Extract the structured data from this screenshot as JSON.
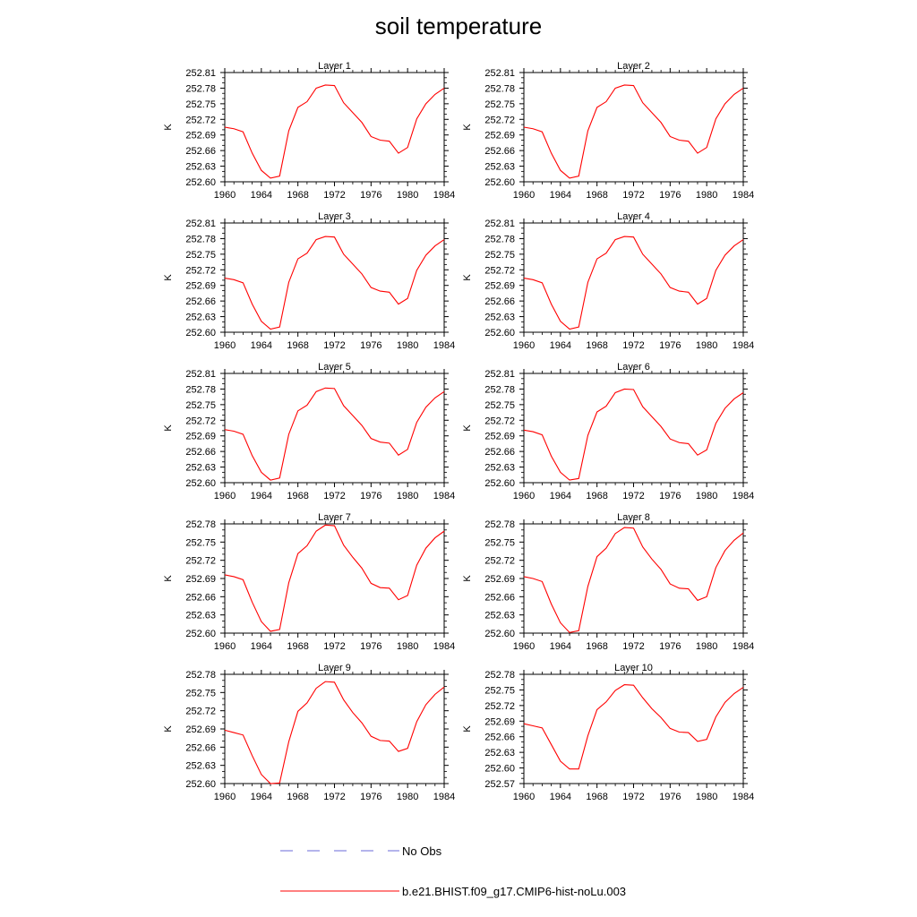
{
  "figure": {
    "title": "soil temperature",
    "legend": [
      {
        "label": "No Obs",
        "style": "dashed",
        "color": "#6a6ad8"
      },
      {
        "label": "b.e21.BHIST.f09_g17.CMIP6-hist-noLu.003",
        "style": "solid",
        "color": "#ff0000"
      }
    ]
  },
  "chart_data": [
    {
      "type": "line",
      "title": "Layer 1",
      "ylabel": "K",
      "xlim": [
        1960,
        1984
      ],
      "ylim": [
        252.6,
        252.81
      ],
      "xticks": [
        "1960",
        "1964",
        "1968",
        "1972",
        "1976",
        "1980",
        "1984"
      ],
      "yticks": [
        "252.60",
        "252.63",
        "252.66",
        "252.69",
        "252.72",
        "252.75",
        "252.78",
        "252.81"
      ],
      "x": [
        1960,
        1961,
        1962,
        1963,
        1964,
        1965,
        1966,
        1967,
        1968,
        1969,
        1970,
        1971,
        1972,
        1973,
        1974,
        1975,
        1976,
        1977,
        1978,
        1979,
        1980,
        1981,
        1982,
        1983,
        1984
      ],
      "series": [
        {
          "name": "b.e21.BHIST.f09_g17.CMIP6-hist-noLu.003",
          "color": "#ff0000",
          "values": [
            252.705,
            252.702,
            252.696,
            252.655,
            252.622,
            252.607,
            252.611,
            252.698,
            252.743,
            252.754,
            252.78,
            252.786,
            252.785,
            252.752,
            252.733,
            252.714,
            252.687,
            252.68,
            252.678,
            252.655,
            252.666,
            252.721,
            252.75,
            252.768,
            252.78
          ]
        }
      ]
    },
    {
      "type": "line",
      "title": "Layer 2",
      "ylabel": "K",
      "xlim": [
        1960,
        1984
      ],
      "ylim": [
        252.6,
        252.81
      ],
      "xticks": [
        "1960",
        "1964",
        "1968",
        "1972",
        "1976",
        "1980",
        "1984"
      ],
      "yticks": [
        "252.60",
        "252.63",
        "252.66",
        "252.69",
        "252.72",
        "252.75",
        "252.78",
        "252.81"
      ],
      "x": [
        1960,
        1961,
        1962,
        1963,
        1964,
        1965,
        1966,
        1967,
        1968,
        1969,
        1970,
        1971,
        1972,
        1973,
        1974,
        1975,
        1976,
        1977,
        1978,
        1979,
        1980,
        1981,
        1982,
        1983,
        1984
      ],
      "series": [
        {
          "name": "b.e21.BHIST.f09_g17.CMIP6-hist-noLu.003",
          "color": "#ff0000",
          "values": [
            252.705,
            252.702,
            252.696,
            252.655,
            252.622,
            252.607,
            252.611,
            252.698,
            252.743,
            252.754,
            252.78,
            252.786,
            252.785,
            252.752,
            252.733,
            252.714,
            252.687,
            252.68,
            252.678,
            252.655,
            252.666,
            252.721,
            252.75,
            252.768,
            252.78
          ]
        }
      ]
    },
    {
      "type": "line",
      "title": "Layer 3",
      "ylabel": "K",
      "xlim": [
        1960,
        1984
      ],
      "ylim": [
        252.6,
        252.81
      ],
      "xticks": [
        "1960",
        "1964",
        "1968",
        "1972",
        "1976",
        "1980",
        "1984"
      ],
      "yticks": [
        "252.60",
        "252.63",
        "252.66",
        "252.69",
        "252.72",
        "252.75",
        "252.78",
        "252.81"
      ],
      "x": [
        1960,
        1961,
        1962,
        1963,
        1964,
        1965,
        1966,
        1967,
        1968,
        1969,
        1970,
        1971,
        1972,
        1973,
        1974,
        1975,
        1976,
        1977,
        1978,
        1979,
        1980,
        1981,
        1982,
        1983,
        1984
      ],
      "series": [
        {
          "name": "b.e21.BHIST.f09_g17.CMIP6-hist-noLu.003",
          "color": "#ff0000",
          "values": [
            252.704,
            252.701,
            252.695,
            252.654,
            252.621,
            252.606,
            252.61,
            252.696,
            252.741,
            252.752,
            252.778,
            252.784,
            252.783,
            252.75,
            252.731,
            252.712,
            252.686,
            252.679,
            252.677,
            252.654,
            252.665,
            252.719,
            252.748,
            252.766,
            252.778
          ]
        }
      ]
    },
    {
      "type": "line",
      "title": "Layer 4",
      "ylabel": "K",
      "xlim": [
        1960,
        1984
      ],
      "ylim": [
        252.6,
        252.81
      ],
      "xticks": [
        "1960",
        "1964",
        "1968",
        "1972",
        "1976",
        "1980",
        "1984"
      ],
      "yticks": [
        "252.60",
        "252.63",
        "252.66",
        "252.69",
        "252.72",
        "252.75",
        "252.78",
        "252.81"
      ],
      "x": [
        1960,
        1961,
        1962,
        1963,
        1964,
        1965,
        1966,
        1967,
        1968,
        1969,
        1970,
        1971,
        1972,
        1973,
        1974,
        1975,
        1976,
        1977,
        1978,
        1979,
        1980,
        1981,
        1982,
        1983,
        1984
      ],
      "series": [
        {
          "name": "b.e21.BHIST.f09_g17.CMIP6-hist-noLu.003",
          "color": "#ff0000",
          "values": [
            252.704,
            252.701,
            252.695,
            252.654,
            252.621,
            252.606,
            252.61,
            252.696,
            252.741,
            252.752,
            252.778,
            252.784,
            252.783,
            252.75,
            252.731,
            252.712,
            252.686,
            252.679,
            252.677,
            252.654,
            252.665,
            252.719,
            252.748,
            252.766,
            252.778
          ]
        }
      ]
    },
    {
      "type": "line",
      "title": "Layer 5",
      "ylabel": "K",
      "xlim": [
        1960,
        1984
      ],
      "ylim": [
        252.6,
        252.81
      ],
      "xticks": [
        "1960",
        "1964",
        "1968",
        "1972",
        "1976",
        "1980",
        "1984"
      ],
      "yticks": [
        "252.60",
        "252.63",
        "252.66",
        "252.69",
        "252.72",
        "252.75",
        "252.78",
        "252.81"
      ],
      "x": [
        1960,
        1961,
        1962,
        1963,
        1964,
        1965,
        1966,
        1967,
        1968,
        1969,
        1970,
        1971,
        1972,
        1973,
        1974,
        1975,
        1976,
        1977,
        1978,
        1979,
        1980,
        1981,
        1982,
        1983,
        1984
      ],
      "series": [
        {
          "name": "b.e21.BHIST.f09_g17.CMIP6-hist-noLu.003",
          "color": "#ff0000",
          "values": [
            252.702,
            252.699,
            252.693,
            252.652,
            252.62,
            252.605,
            252.609,
            252.693,
            252.738,
            252.749,
            252.775,
            252.782,
            252.781,
            252.748,
            252.729,
            252.71,
            252.685,
            252.678,
            252.676,
            252.653,
            252.664,
            252.716,
            252.745,
            252.763,
            252.775
          ]
        }
      ]
    },
    {
      "type": "line",
      "title": "Layer 6",
      "ylabel": "K",
      "xlim": [
        1960,
        1984
      ],
      "ylim": [
        252.6,
        252.81
      ],
      "xticks": [
        "1960",
        "1964",
        "1968",
        "1972",
        "1976",
        "1980",
        "1984"
      ],
      "yticks": [
        "252.60",
        "252.63",
        "252.66",
        "252.69",
        "252.72",
        "252.75",
        "252.78",
        "252.81"
      ],
      "x": [
        1960,
        1961,
        1962,
        1963,
        1964,
        1965,
        1966,
        1967,
        1968,
        1969,
        1970,
        1971,
        1972,
        1973,
        1974,
        1975,
        1976,
        1977,
        1978,
        1979,
        1980,
        1981,
        1982,
        1983,
        1984
      ],
      "series": [
        {
          "name": "b.e21.BHIST.f09_g17.CMIP6-hist-noLu.003",
          "color": "#ff0000",
          "values": [
            252.701,
            252.698,
            252.692,
            252.651,
            252.62,
            252.605,
            252.608,
            252.691,
            252.736,
            252.747,
            252.773,
            252.78,
            252.779,
            252.746,
            252.727,
            252.708,
            252.684,
            252.677,
            252.675,
            252.653,
            252.663,
            252.714,
            252.743,
            252.761,
            252.773
          ]
        }
      ]
    },
    {
      "type": "line",
      "title": "Layer 7",
      "ylabel": "K",
      "xlim": [
        1960,
        1984
      ],
      "ylim": [
        252.6,
        252.78
      ],
      "xticks": [
        "1960",
        "1964",
        "1968",
        "1972",
        "1976",
        "1980",
        "1984"
      ],
      "yticks": [
        "252.60",
        "252.63",
        "252.66",
        "252.69",
        "252.72",
        "252.75",
        "252.78"
      ],
      "x": [
        1960,
        1961,
        1962,
        1963,
        1964,
        1965,
        1966,
        1967,
        1968,
        1969,
        1970,
        1971,
        1972,
        1973,
        1974,
        1975,
        1976,
        1977,
        1978,
        1979,
        1980,
        1981,
        1982,
        1983,
        1984
      ],
      "series": [
        {
          "name": "b.e21.BHIST.f09_g17.CMIP6-hist-noLu.003",
          "color": "#ff0000",
          "values": [
            252.696,
            252.693,
            252.688,
            252.651,
            252.619,
            252.603,
            252.606,
            252.683,
            252.731,
            252.744,
            252.768,
            252.778,
            252.777,
            252.745,
            252.725,
            252.707,
            252.682,
            252.675,
            252.674,
            252.655,
            252.662,
            252.712,
            252.74,
            252.757,
            252.768
          ]
        }
      ]
    },
    {
      "type": "line",
      "title": "Layer 8",
      "ylabel": "K",
      "xlim": [
        1960,
        1984
      ],
      "ylim": [
        252.6,
        252.78
      ],
      "xticks": [
        "1960",
        "1964",
        "1968",
        "1972",
        "1976",
        "1980",
        "1984"
      ],
      "yticks": [
        "252.60",
        "252.63",
        "252.66",
        "252.69",
        "252.72",
        "252.75",
        "252.78"
      ],
      "x": [
        1960,
        1961,
        1962,
        1963,
        1964,
        1965,
        1966,
        1967,
        1968,
        1969,
        1970,
        1971,
        1972,
        1973,
        1974,
        1975,
        1976,
        1977,
        1978,
        1979,
        1980,
        1981,
        1982,
        1983,
        1984
      ],
      "series": [
        {
          "name": "b.e21.BHIST.f09_g17.CMIP6-hist-noLu.003",
          "color": "#ff0000",
          "values": [
            252.693,
            252.69,
            252.685,
            252.648,
            252.617,
            252.601,
            252.604,
            252.677,
            252.726,
            252.74,
            252.764,
            252.774,
            252.773,
            252.742,
            252.722,
            252.705,
            252.681,
            252.674,
            252.673,
            252.654,
            252.66,
            252.708,
            252.736,
            252.753,
            252.765
          ]
        }
      ]
    },
    {
      "type": "line",
      "title": "Layer 9",
      "ylabel": "K",
      "xlim": [
        1960,
        1984
      ],
      "ylim": [
        252.6,
        252.78
      ],
      "xticks": [
        "1960",
        "1964",
        "1968",
        "1972",
        "1976",
        "1980",
        "1984"
      ],
      "yticks": [
        "252.60",
        "252.63",
        "252.66",
        "252.69",
        "252.72",
        "252.75",
        "252.78"
      ],
      "x": [
        1960,
        1961,
        1962,
        1963,
        1964,
        1965,
        1966,
        1967,
        1968,
        1969,
        1970,
        1971,
        1972,
        1973,
        1974,
        1975,
        1976,
        1977,
        1978,
        1979,
        1980,
        1981,
        1982,
        1983,
        1984
      ],
      "series": [
        {
          "name": "b.e21.BHIST.f09_g17.CMIP6-hist-noLu.003",
          "color": "#ff0000",
          "values": [
            252.688,
            252.684,
            252.68,
            252.646,
            252.615,
            252.6,
            252.601,
            252.669,
            252.719,
            252.733,
            252.757,
            252.768,
            252.767,
            252.738,
            252.717,
            252.7,
            252.678,
            252.671,
            252.67,
            252.653,
            252.658,
            252.702,
            252.73,
            252.747,
            252.759
          ]
        }
      ]
    },
    {
      "type": "line",
      "title": "Layer 10",
      "ylabel": "K",
      "xlim": [
        1960,
        1984
      ],
      "ylim": [
        252.57,
        252.78
      ],
      "xticks": [
        "1960",
        "1964",
        "1968",
        "1972",
        "1976",
        "1980",
        "1984"
      ],
      "yticks": [
        "252.57",
        "252.60",
        "252.63",
        "252.66",
        "252.69",
        "252.72",
        "252.75",
        "252.78"
      ],
      "x": [
        1960,
        1961,
        1962,
        1963,
        1964,
        1965,
        1966,
        1967,
        1968,
        1969,
        1970,
        1971,
        1972,
        1973,
        1974,
        1975,
        1976,
        1977,
        1978,
        1979,
        1980,
        1981,
        1982,
        1983,
        1984
      ],
      "series": [
        {
          "name": "b.e21.BHIST.f09_g17.CMIP6-hist-noLu.003",
          "color": "#ff0000",
          "values": [
            252.685,
            252.681,
            252.677,
            252.645,
            252.613,
            252.598,
            252.598,
            252.662,
            252.712,
            252.727,
            252.749,
            252.76,
            252.759,
            252.735,
            252.714,
            252.697,
            252.676,
            252.669,
            252.668,
            252.651,
            252.655,
            252.698,
            252.726,
            252.743,
            252.755
          ]
        }
      ]
    }
  ]
}
